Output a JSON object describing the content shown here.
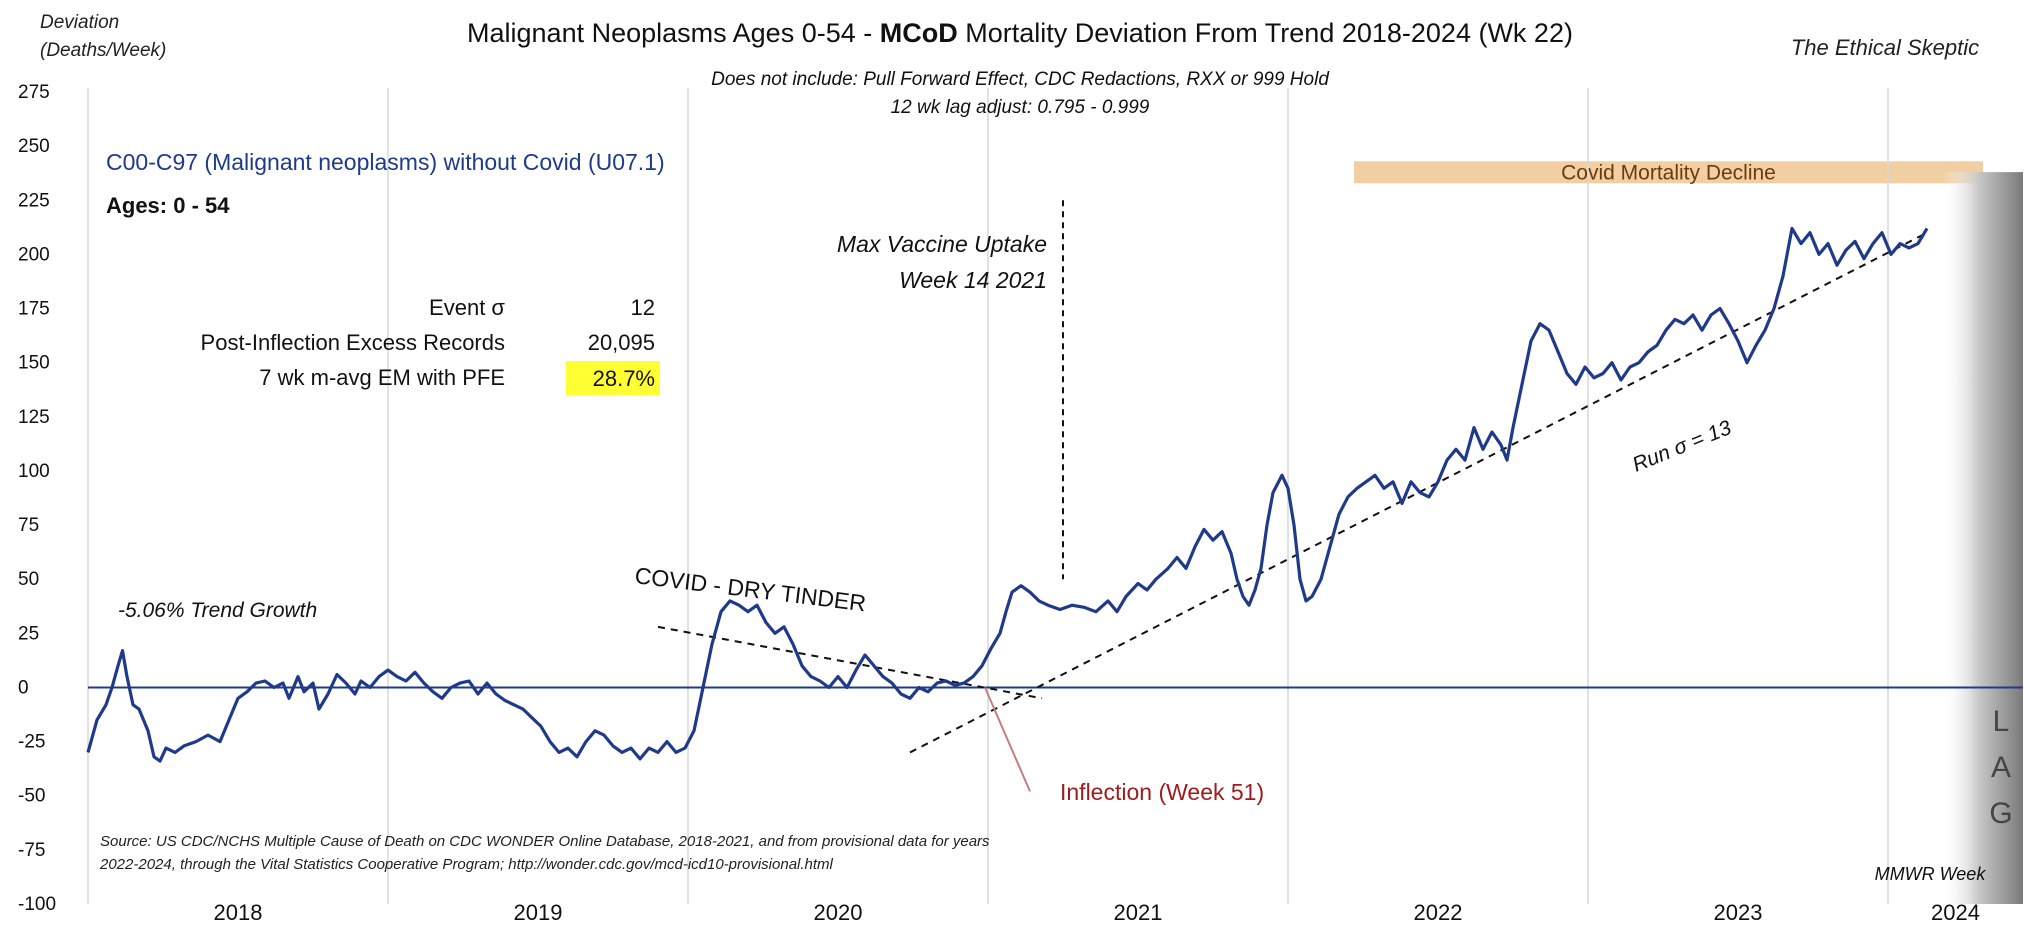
{
  "chart_data": {
    "type": "line",
    "title_prefix": "Malignant Neoplasms Ages 0-54 - ",
    "title_bold": "MCoD",
    "title_suffix": " Mortality Deviation From Trend  2018-2024 (Wk 22)",
    "subtitle_line1": "Does not include: Pull Forward Effect,  CDC Redactions,  RXX or 999 Hold",
    "subtitle_line2": "12 wk lag adjust: 0.795 - 0.999",
    "watermark": "The Ethical Skeptic",
    "ylabel_line1": "Deviation",
    "ylabel_line2": "(Deaths/Week)",
    "xlabel": "MMWR Week",
    "ylim": [
      -100,
      275
    ],
    "yticks": [
      275,
      250,
      225,
      200,
      175,
      150,
      125,
      100,
      75,
      50,
      25,
      0,
      -25,
      -50,
      -75,
      -100
    ],
    "xlim": [
      2018.0,
      2024.45
    ],
    "year_labels": [
      "2018",
      "2019",
      "2020",
      "2021",
      "2022",
      "2023",
      "2024"
    ],
    "grid": "vertical lines at year boundaries",
    "series_label": "C00-C97 (Malignant neoplasms) without Covid (U07.1)",
    "ages_label": "Ages: 0 - 54",
    "stats": {
      "rows": [
        {
          "label": "Event σ",
          "value": "12"
        },
        {
          "label": "Post-Inflection Excess Records",
          "value": "20,095"
        },
        {
          "label": "7 wk m-avg EM with PFE",
          "value": "28.7%"
        }
      ],
      "highlight_color": "#ffff33"
    },
    "annotations": {
      "covid_band": "Covid Mortality Decline",
      "covid_band_color": "#f2cfa2",
      "covid_band_range": [
        2022.0,
        2024.45
      ],
      "max_vaccine_line1": "Max Vaccine Uptake",
      "max_vaccine_line2": "Week 14 2021",
      "max_vaccine_x": 2021.25,
      "dry_tinder": "COVID - DRY TINDER",
      "trend_growth": "-5.06% Trend Growth",
      "inflection": "Inflection (Week 51)",
      "inflection_x": 2020.98,
      "run_sigma": "Run σ = 13",
      "lag_letters": [
        "L",
        "A",
        "G"
      ],
      "source_line1": "Source: US CDC/NCHS Multiple Cause of Death on CDC WONDER Online Database, 2018-2021, and from provisional data for years",
      "source_line2": "2022-2024, through the Vital Statistics Cooperative Program; http://wonder.cdc.gov/mcd-icd10-provisional.html"
    },
    "colors": {
      "series": "#1f3a8a",
      "zero_line": "#1f3a8a",
      "inflection_text": "#a01c1c",
      "series_label": "#1f3a8a"
    },
    "series": [
      {
        "points": [
          [
            2018.0,
            -30
          ],
          [
            2018.03,
            -15
          ],
          [
            2018.06,
            -8
          ],
          [
            2018.08,
            0
          ],
          [
            2018.1,
            10
          ],
          [
            2018.115,
            17
          ],
          [
            2018.13,
            5
          ],
          [
            2018.15,
            -8
          ],
          [
            2018.17,
            -10
          ],
          [
            2018.2,
            -20
          ],
          [
            2018.22,
            -32
          ],
          [
            2018.24,
            -34
          ],
          [
            2018.26,
            -28
          ],
          [
            2018.29,
            -30
          ],
          [
            2018.32,
            -27
          ],
          [
            2018.36,
            -25
          ],
          [
            2018.4,
            -22
          ],
          [
            2018.44,
            -25
          ],
          [
            2018.47,
            -15
          ],
          [
            2018.5,
            -5
          ],
          [
            2018.53,
            -2
          ],
          [
            2018.56,
            2
          ],
          [
            2018.59,
            3
          ],
          [
            2018.62,
            0
          ],
          [
            2018.65,
            2
          ],
          [
            2018.67,
            -5
          ],
          [
            2018.7,
            5
          ],
          [
            2018.72,
            -2
          ],
          [
            2018.75,
            2
          ],
          [
            2018.77,
            -10
          ],
          [
            2018.8,
            -3
          ],
          [
            2018.83,
            6
          ],
          [
            2018.86,
            2
          ],
          [
            2018.89,
            -3
          ],
          [
            2018.91,
            3
          ],
          [
            2018.94,
            0
          ],
          [
            2018.97,
            5
          ],
          [
            2019.0,
            8
          ],
          [
            2019.03,
            5
          ],
          [
            2019.06,
            3
          ],
          [
            2019.09,
            7
          ],
          [
            2019.12,
            2
          ],
          [
            2019.15,
            -2
          ],
          [
            2019.18,
            -5
          ],
          [
            2019.21,
            0
          ],
          [
            2019.24,
            2
          ],
          [
            2019.27,
            3
          ],
          [
            2019.3,
            -3
          ],
          [
            2019.33,
            2
          ],
          [
            2019.36,
            -3
          ],
          [
            2019.39,
            -6
          ],
          [
            2019.42,
            -8
          ],
          [
            2019.45,
            -10
          ],
          [
            2019.48,
            -14
          ],
          [
            2019.51,
            -18
          ],
          [
            2019.54,
            -25
          ],
          [
            2019.57,
            -30
          ],
          [
            2019.6,
            -28
          ],
          [
            2019.63,
            -32
          ],
          [
            2019.66,
            -25
          ],
          [
            2019.69,
            -20
          ],
          [
            2019.72,
            -22
          ],
          [
            2019.75,
            -27
          ],
          [
            2019.78,
            -30
          ],
          [
            2019.81,
            -28
          ],
          [
            2019.84,
            -33
          ],
          [
            2019.87,
            -28
          ],
          [
            2019.9,
            -30
          ],
          [
            2019.93,
            -25
          ],
          [
            2019.96,
            -30
          ],
          [
            2019.99,
            -28
          ],
          [
            2020.02,
            -20
          ],
          [
            2020.05,
            0
          ],
          [
            2020.08,
            20
          ],
          [
            2020.11,
            35
          ],
          [
            2020.14,
            40
          ],
          [
            2020.17,
            38
          ],
          [
            2020.2,
            35
          ],
          [
            2020.23,
            38
          ],
          [
            2020.26,
            30
          ],
          [
            2020.29,
            25
          ],
          [
            2020.32,
            28
          ],
          [
            2020.35,
            20
          ],
          [
            2020.38,
            10
          ],
          [
            2020.41,
            5
          ],
          [
            2020.44,
            3
          ],
          [
            2020.47,
            0
          ],
          [
            2020.5,
            5
          ],
          [
            2020.53,
            0
          ],
          [
            2020.56,
            8
          ],
          [
            2020.59,
            15
          ],
          [
            2020.62,
            10
          ],
          [
            2020.65,
            5
          ],
          [
            2020.68,
            2
          ],
          [
            2020.71,
            -3
          ],
          [
            2020.74,
            -5
          ],
          [
            2020.77,
            0
          ],
          [
            2020.8,
            -2
          ],
          [
            2020.83,
            2
          ],
          [
            2020.86,
            3
          ],
          [
            2020.89,
            1
          ],
          [
            2020.92,
            2
          ],
          [
            2020.95,
            5
          ],
          [
            2020.98,
            10
          ],
          [
            2021.01,
            18
          ],
          [
            2021.04,
            25
          ],
          [
            2021.06,
            35
          ],
          [
            2021.08,
            44
          ],
          [
            2021.11,
            47
          ],
          [
            2021.14,
            44
          ],
          [
            2021.17,
            40
          ],
          [
            2021.2,
            38
          ],
          [
            2021.24,
            36
          ],
          [
            2021.28,
            38
          ],
          [
            2021.32,
            37
          ],
          [
            2021.36,
            35
          ],
          [
            2021.4,
            40
          ],
          [
            2021.43,
            35
          ],
          [
            2021.46,
            42
          ],
          [
            2021.5,
            48
          ],
          [
            2021.53,
            45
          ],
          [
            2021.56,
            50
          ],
          [
            2021.6,
            55
          ],
          [
            2021.63,
            60
          ],
          [
            2021.66,
            55
          ],
          [
            2021.69,
            65
          ],
          [
            2021.72,
            73
          ],
          [
            2021.75,
            68
          ],
          [
            2021.78,
            72
          ],
          [
            2021.81,
            62
          ],
          [
            2021.83,
            50
          ],
          [
            2021.85,
            42
          ],
          [
            2021.87,
            38
          ],
          [
            2021.89,
            45
          ],
          [
            2021.91,
            55
          ],
          [
            2021.93,
            75
          ],
          [
            2021.95,
            90
          ],
          [
            2021.98,
            98
          ],
          [
            2022.0,
            92
          ],
          [
            2022.02,
            75
          ],
          [
            2022.04,
            50
          ],
          [
            2022.06,
            40
          ],
          [
            2022.08,
            42
          ],
          [
            2022.11,
            50
          ],
          [
            2022.14,
            65
          ],
          [
            2022.17,
            80
          ],
          [
            2022.2,
            88
          ],
          [
            2022.23,
            92
          ],
          [
            2022.26,
            95
          ],
          [
            2022.29,
            98
          ],
          [
            2022.32,
            92
          ],
          [
            2022.35,
            95
          ],
          [
            2022.38,
            85
          ],
          [
            2022.41,
            95
          ],
          [
            2022.44,
            90
          ],
          [
            2022.47,
            88
          ],
          [
            2022.5,
            95
          ],
          [
            2022.53,
            105
          ],
          [
            2022.56,
            110
          ],
          [
            2022.59,
            105
          ],
          [
            2022.62,
            120
          ],
          [
            2022.65,
            110
          ],
          [
            2022.68,
            118
          ],
          [
            2022.71,
            112
          ],
          [
            2022.73,
            105
          ],
          [
            2022.75,
            120
          ],
          [
            2022.78,
            140
          ],
          [
            2022.81,
            160
          ],
          [
            2022.84,
            168
          ],
          [
            2022.87,
            165
          ],
          [
            2022.9,
            155
          ],
          [
            2022.93,
            145
          ],
          [
            2022.96,
            140
          ],
          [
            2022.99,
            148
          ],
          [
            2023.02,
            143
          ],
          [
            2023.05,
            145
          ],
          [
            2023.08,
            150
          ],
          [
            2023.11,
            142
          ],
          [
            2023.14,
            148
          ],
          [
            2023.17,
            150
          ],
          [
            2023.2,
            155
          ],
          [
            2023.23,
            158
          ],
          [
            2023.26,
            165
          ],
          [
            2023.29,
            170
          ],
          [
            2023.32,
            168
          ],
          [
            2023.35,
            172
          ],
          [
            2023.38,
            165
          ],
          [
            2023.41,
            172
          ],
          [
            2023.44,
            175
          ],
          [
            2023.47,
            168
          ],
          [
            2023.5,
            160
          ],
          [
            2023.53,
            150
          ],
          [
            2023.56,
            158
          ],
          [
            2023.59,
            165
          ],
          [
            2023.62,
            175
          ],
          [
            2023.65,
            190
          ],
          [
            2023.68,
            212
          ],
          [
            2023.71,
            205
          ],
          [
            2023.74,
            210
          ],
          [
            2023.77,
            200
          ],
          [
            2023.8,
            205
          ],
          [
            2023.83,
            195
          ],
          [
            2023.86,
            202
          ],
          [
            2023.89,
            206
          ],
          [
            2023.92,
            198
          ],
          [
            2023.95,
            205
          ],
          [
            2023.98,
            210
          ],
          [
            2024.01,
            200
          ],
          [
            2024.04,
            205
          ],
          [
            2024.07,
            203
          ],
          [
            2024.1,
            205
          ],
          [
            2024.13,
            212
          ]
        ]
      }
    ],
    "trend_lines": [
      {
        "name": "run",
        "from": [
          2020.74,
          -30
        ],
        "to": [
          2024.13,
          210
        ]
      },
      {
        "name": "tinder",
        "from": [
          2019.9,
          28
        ],
        "to": [
          2021.18,
          -5
        ]
      },
      {
        "name": "inflection-pointer",
        "from": [
          2020.99,
          0
        ],
        "to": [
          2021.14,
          -48
        ]
      }
    ]
  }
}
